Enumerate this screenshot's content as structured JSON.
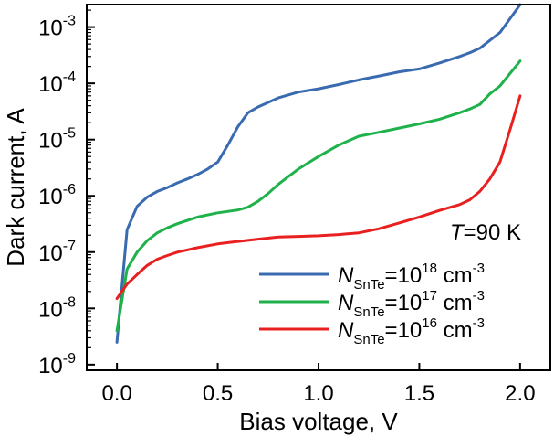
{
  "chart_data": {
    "type": "line",
    "title": "",
    "xlabel": "Bias voltage, V",
    "ylabel": "Dark current, A",
    "yscale": "log",
    "xlim": [
      -0.15,
      2.15
    ],
    "ylim_exponent": [
      -9.1,
      -2.6
    ],
    "x_ticks": [
      {
        "value": 0.0,
        "label": "0.0"
      },
      {
        "value": 0.5,
        "label": "0.5"
      },
      {
        "value": 1.0,
        "label": "1.0"
      },
      {
        "value": 1.5,
        "label": "1.5"
      },
      {
        "value": 2.0,
        "label": "2.0"
      }
    ],
    "y_ticks": [
      {
        "exponent": -9,
        "base": "10",
        "sup": "-9"
      },
      {
        "exponent": -8,
        "base": "10",
        "sup": "-8"
      },
      {
        "exponent": -7,
        "base": "10",
        "sup": "-7"
      },
      {
        "exponent": -6,
        "base": "10",
        "sup": "-6"
      },
      {
        "exponent": -5,
        "base": "10",
        "sup": "-5"
      },
      {
        "exponent": -4,
        "base": "10",
        "sup": "-4"
      },
      {
        "exponent": -3,
        "base": "10",
        "sup": "-3"
      }
    ],
    "annotation": {
      "var": "T",
      "text": "=90 K"
    },
    "series": [
      {
        "name": "N_SnTe=10^18 cm^-3",
        "label_var": "N",
        "label_sub": "SnTe",
        "label_eq": "=10",
        "label_exp": "18",
        "label_unit": " cm",
        "label_unit_exp": "-3",
        "color": "#3a6bb0",
        "x": [
          0.0,
          0.05,
          0.1,
          0.15,
          0.2,
          0.25,
          0.3,
          0.35,
          0.4,
          0.45,
          0.5,
          0.55,
          0.6,
          0.65,
          0.7,
          0.8,
          0.9,
          1.0,
          1.1,
          1.2,
          1.3,
          1.4,
          1.5,
          1.6,
          1.7,
          1.75,
          1.8,
          1.9,
          2.0
        ],
        "y": [
          2.5e-09,
          2.5e-07,
          6.5e-07,
          9.5e-07,
          1.2e-06,
          1.4e-06,
          1.7e-06,
          2e-06,
          2.4e-06,
          3e-06,
          4e-06,
          8e-06,
          1.7e-05,
          3e-05,
          3.8e-05,
          5.5e-05,
          7e-05,
          8e-05,
          9.5e-05,
          0.000115,
          0.000135,
          0.00016,
          0.00018,
          0.00023,
          0.0003,
          0.00035,
          0.00042,
          0.0008,
          0.0025
        ]
      },
      {
        "name": "N_SnTe=10^17 cm^-3",
        "label_var": "N",
        "label_sub": "SnTe",
        "label_eq": "=10",
        "label_exp": "17",
        "label_unit": " cm",
        "label_unit_exp": "-3",
        "color": "#1fb24b",
        "x": [
          0.0,
          0.05,
          0.1,
          0.15,
          0.2,
          0.25,
          0.3,
          0.4,
          0.5,
          0.6,
          0.65,
          0.7,
          0.75,
          0.8,
          0.85,
          0.9,
          1.0,
          1.1,
          1.2,
          1.3,
          1.4,
          1.5,
          1.6,
          1.7,
          1.75,
          1.8,
          1.85,
          1.9,
          2.0
        ],
        "y": [
          4e-09,
          5e-08,
          1e-07,
          1.6e-07,
          2.2e-07,
          2.7e-07,
          3.2e-07,
          4.2e-07,
          5e-07,
          5.6e-07,
          6.3e-07,
          8e-07,
          1.1e-06,
          1.6e-06,
          2.2e-06,
          3e-06,
          5e-06,
          8e-06,
          1.15e-05,
          1.35e-05,
          1.6e-05,
          1.9e-05,
          2.3e-05,
          3e-05,
          3.5e-05,
          4.2e-05,
          6.5e-05,
          9e-05,
          0.00025
        ]
      },
      {
        "name": "N_SnTe=10^16 cm^-3",
        "label_var": "N",
        "label_sub": "SnTe",
        "label_eq": "=10",
        "label_exp": "16",
        "label_unit": " cm",
        "label_unit_exp": "-3",
        "color": "#e8201f",
        "x": [
          0.0,
          0.05,
          0.1,
          0.15,
          0.2,
          0.25,
          0.3,
          0.4,
          0.5,
          0.6,
          0.7,
          0.8,
          0.9,
          1.0,
          1.1,
          1.2,
          1.3,
          1.4,
          1.5,
          1.6,
          1.7,
          1.75,
          1.8,
          1.85,
          1.9,
          1.95,
          2.0
        ],
        "y": [
          1.5e-08,
          2.7e-08,
          4e-08,
          5.8e-08,
          7.5e-08,
          8.7e-08,
          1e-07,
          1.2e-07,
          1.4e-07,
          1.55e-07,
          1.7e-07,
          1.85e-07,
          1.9e-07,
          1.95e-07,
          2.05e-07,
          2.2e-07,
          2.6e-07,
          3.3e-07,
          4.2e-07,
          5.5e-07,
          7e-07,
          8.5e-07,
          1.2e-06,
          2e-06,
          4e-06,
          1.5e-05,
          6e-05
        ]
      }
    ]
  }
}
